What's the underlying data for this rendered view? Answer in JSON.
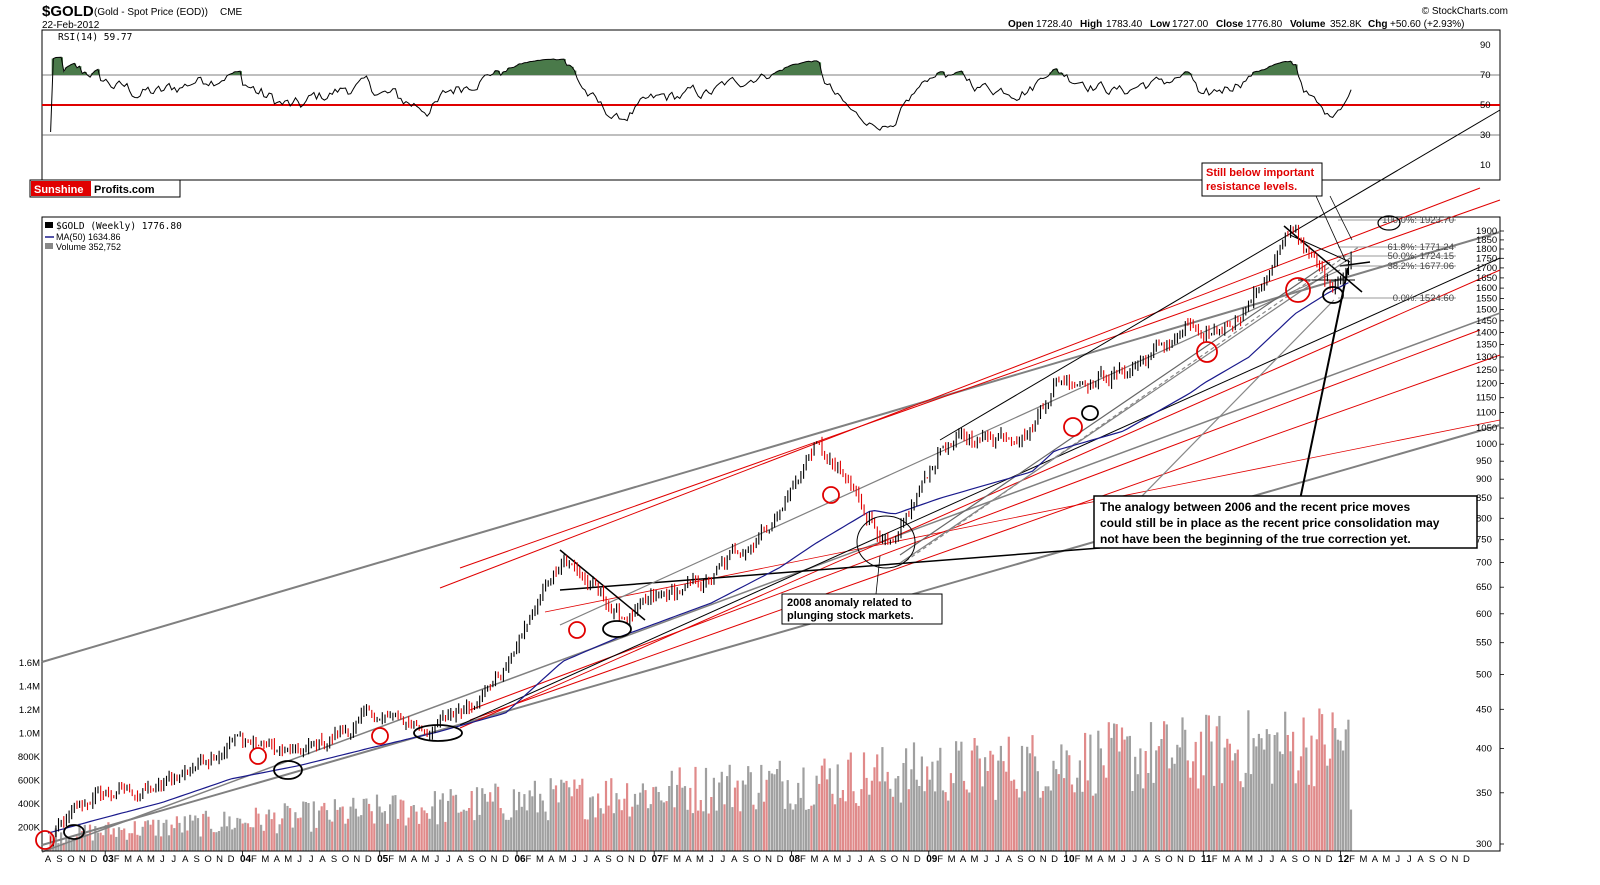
{
  "header": {
    "symbol": "$GOLD",
    "description": "(Gold - Spot Price (EOD))",
    "exchange": "CME",
    "date": "22-Feb-2012",
    "open_label": "Open",
    "open": "1728.40",
    "high_label": "High",
    "high": "1783.40",
    "low_label": "Low",
    "low": "1727.00",
    "close_label": "Close",
    "close": "1776.80",
    "volume_label": "Volume",
    "volume": "352.8K",
    "chg_label": "Chg",
    "chg": "+50.60 (+2.93%)",
    "credit": "© StockCharts.com"
  },
  "rsi": {
    "label": "RSI(14) 59.77",
    "ticks": [
      90,
      70,
      50,
      30,
      10
    ],
    "overbought": 70,
    "oversold": 30,
    "midline": 50,
    "midline_color": "#e00000",
    "fill_color": "#4a7a4a"
  },
  "logo": {
    "part1": "Sunshine",
    "part2": "Profits.com"
  },
  "legend": {
    "price": "$GOLD (Weekly) 1776.80",
    "ma": "MA(50) 1634.86",
    "volume": "Volume 352,752"
  },
  "price_axis": {
    "ticks": [
      1900,
      1850,
      1800,
      1750,
      1700,
      1650,
      1600,
      1550,
      1500,
      1450,
      1400,
      1350,
      1300,
      1250,
      1200,
      1150,
      1100,
      1050,
      1000,
      950,
      900,
      850,
      800,
      750,
      700,
      650,
      600,
      550,
      500,
      450,
      400,
      350,
      300
    ],
    "scale": "log"
  },
  "volume_axis": {
    "ticks": [
      "1.6M",
      "1.4M",
      "1.2M",
      "1.0M",
      "800K",
      "600K",
      "400K",
      "200K"
    ]
  },
  "fibonacci": [
    {
      "label": "100.0%: 1923.70"
    },
    {
      "label": "61.8%: 1771.24"
    },
    {
      "label": "50.0%: 1724.15"
    },
    {
      "label": "38.2%: 1677.06"
    },
    {
      "label": "0.0%: 1524.60"
    }
  ],
  "time_axis": {
    "years": [
      "03",
      "04",
      "05",
      "06",
      "07",
      "08",
      "09",
      "10",
      "11",
      "12"
    ],
    "months_2002": [
      "A",
      "S",
      "O",
      "N",
      "D"
    ],
    "months": [
      "F",
      "M",
      "A",
      "M",
      "J",
      "J",
      "A",
      "S",
      "O",
      "N",
      "D"
    ],
    "months_2012": [
      "F",
      "M",
      "A",
      "M",
      "J",
      "J",
      "A",
      "S",
      "O",
      "N",
      "D"
    ]
  },
  "annotations": {
    "resistance_1": "Still below important",
    "resistance_2": "resistance levels.",
    "analogy_1": "The analogy between 2006 and the recent price moves",
    "analogy_2": "could still be in place as the recent price consolidation may",
    "analogy_3": "not have been the beginning of the true correction yet.",
    "anomaly_1": "2008 anomaly related to",
    "anomaly_2": "plunging stock markets."
  },
  "colors": {
    "up": "#000000",
    "down": "#e00000",
    "ma": "#1a1a8c",
    "trend_gray": "#808080",
    "trend_red": "#e00000",
    "volume_up": "#a0a0a0",
    "volume_down": "#e08a8a"
  },
  "chart_data": {
    "type": "line",
    "title": "$GOLD (Gold - Spot Price (EOD))",
    "x": [
      "2002-08",
      "2002-12",
      "2003-06",
      "2003-12",
      "2004-06",
      "2004-12",
      "2005-06",
      "2005-12",
      "2006-05",
      "2006-10",
      "2007-06",
      "2007-12",
      "2008-03",
      "2008-08",
      "2008-10",
      "2009-02",
      "2009-10",
      "2009-12",
      "2010-06",
      "2010-12",
      "2011-01",
      "2011-05",
      "2011-09",
      "2011-12",
      "2012-02"
    ],
    "series": [
      {
        "name": "$GOLD (Weekly)",
        "values": [
          302,
          345,
          355,
          415,
          390,
          440,
          425,
          510,
          720,
          590,
          665,
          820,
          1000,
          800,
          720,
          990,
          1060,
          1215,
          1240,
          1420,
          1330,
          1540,
          1900,
          1600,
          1776.8
        ]
      },
      {
        "name": "MA(50)",
        "values": [
          310,
          322,
          340,
          365,
          380,
          400,
          420,
          445,
          520,
          560,
          620,
          690,
          740,
          820,
          810,
          850,
          920,
          980,
          1040,
          1170,
          1200,
          1300,
          1480,
          1580,
          1634.86
        ]
      }
    ],
    "ylim": [
      300,
      1950
    ],
    "yscale": "log",
    "volume_range": [
      0,
      1600000
    ],
    "last_volume": 352752
  }
}
